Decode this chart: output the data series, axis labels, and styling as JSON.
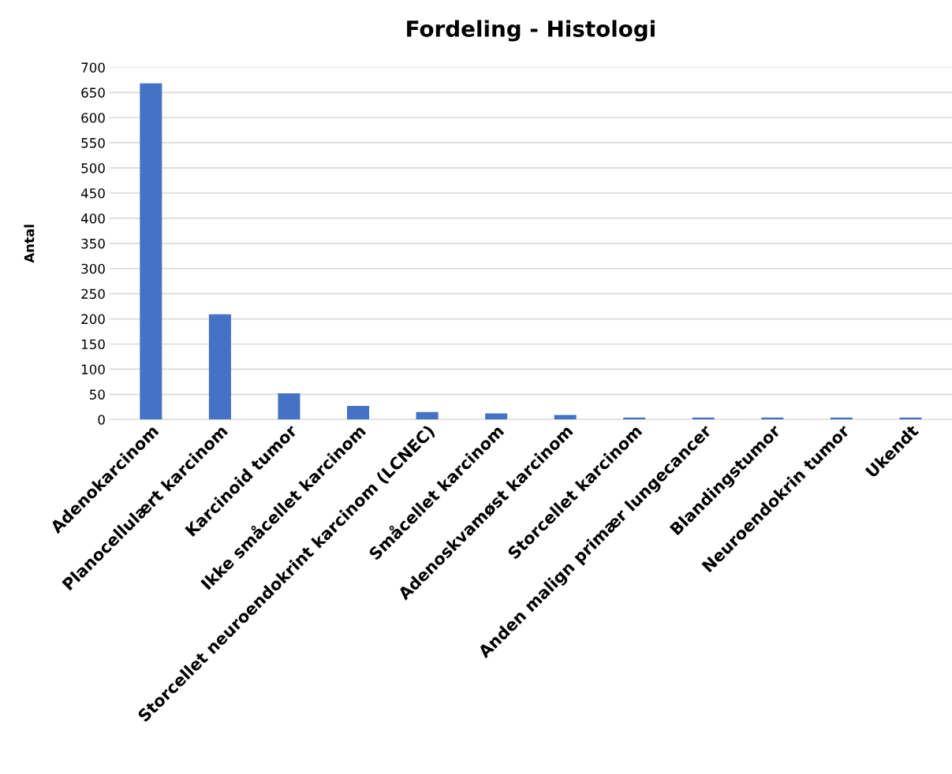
{
  "chart_data": {
    "type": "bar",
    "title": "Fordeling - Histologi",
    "ylabel": "Antal",
    "categories": [
      "Adenokarcinom",
      "Planocellulært karcinom",
      "Karcinoid tumor",
      "Ikke småcellet karcinom",
      "Storcellet neuroendokrint karcinom (LCNEC)",
      "Småcellet karcinom",
      "Adenoskvamøst karcinom",
      "Storcellet karcinom",
      "Anden malign primær lungecancer",
      "Blandingstumor",
      "Neuroendokrin tumor",
      "Ukendt"
    ],
    "values": [
      668,
      209,
      52,
      27,
      15,
      12,
      9,
      4,
      4,
      4,
      4,
      4
    ],
    "color": "#4472c4",
    "ylim": [
      0,
      700
    ],
    "yticks": [
      0,
      50,
      100,
      150,
      200,
      250,
      300,
      350,
      400,
      450,
      500,
      550,
      600,
      650,
      700
    ],
    "grid": "y"
  }
}
